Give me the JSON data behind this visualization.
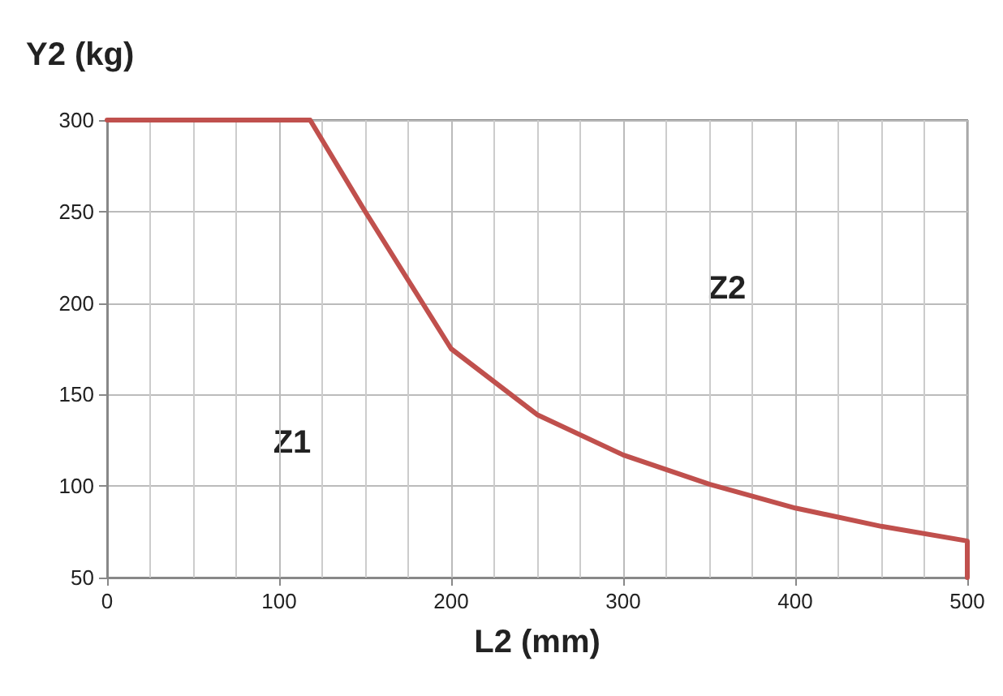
{
  "chart_data": {
    "type": "line",
    "xlabel": "L2 (mm)",
    "ylabel": "Y2 (kg)",
    "series": [
      {
        "color": "#c0504d",
        "x": [
          0,
          118,
          150,
          200,
          250,
          300,
          350,
          400,
          450,
          500,
          500
        ],
        "values": [
          300,
          300,
          250,
          175,
          139,
          117,
          101,
          88,
          78,
          70,
          50
        ]
      }
    ],
    "xlim": [
      0,
      500
    ],
    "xticks": [
      0,
      100,
      200,
      300,
      400,
      500
    ],
    "ylim": [
      50,
      300
    ],
    "yticks": [
      50,
      100,
      150,
      200,
      250,
      300
    ],
    "grid": true,
    "marker": "none",
    "line_style": "solid",
    "annotations": [
      "Z1",
      "Z2"
    ]
  }
}
